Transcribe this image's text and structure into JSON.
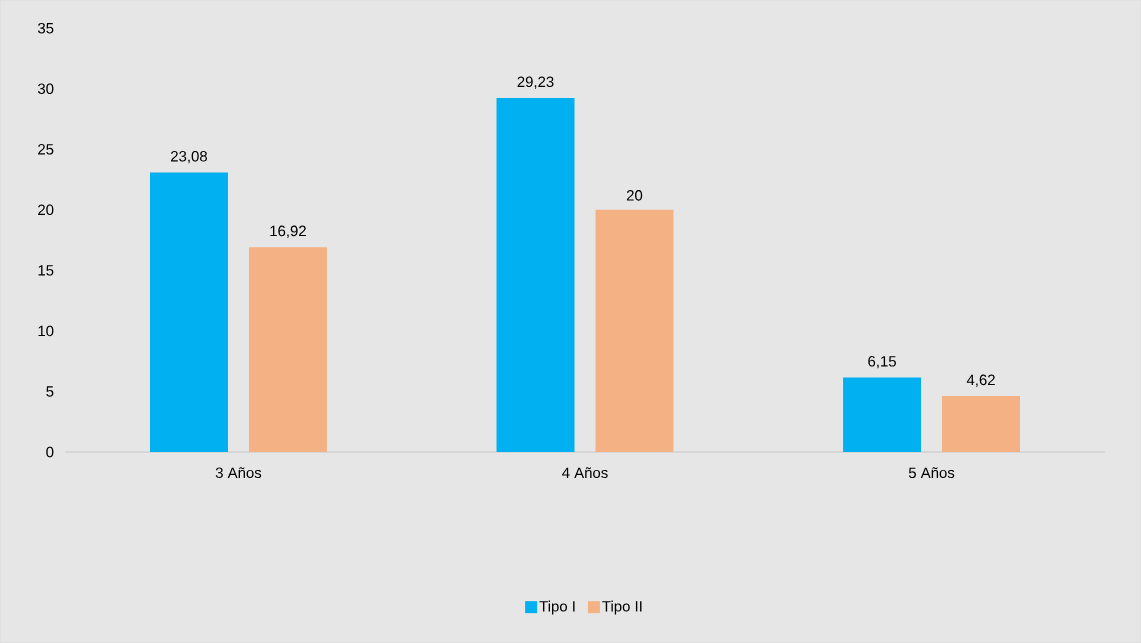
{
  "chart_data": {
    "type": "bar",
    "categories": [
      "3 Años",
      "4 Años",
      "5 Años"
    ],
    "series": [
      {
        "name": "Tipo I",
        "color": "#00b0f0",
        "values": [
          23.08,
          29.23,
          6.15
        ],
        "value_labels": [
          "23,08",
          "29,23",
          "6,15"
        ]
      },
      {
        "name": "Tipo II",
        "color": "#f4b183",
        "values": [
          16.92,
          20,
          4.62
        ],
        "value_labels": [
          "16,92",
          "20",
          "4,62"
        ]
      }
    ],
    "ylim": [
      0,
      35
    ],
    "yticks": [
      0,
      5,
      10,
      15,
      20,
      25,
      30,
      35
    ],
    "legend": "bottom"
  }
}
